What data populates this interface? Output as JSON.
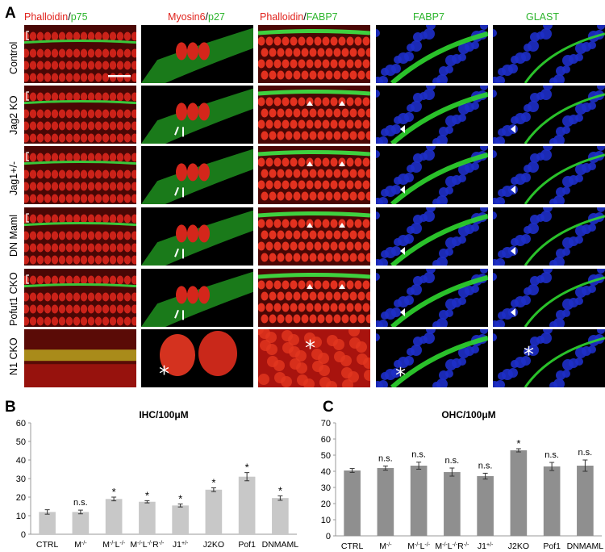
{
  "figure": {
    "panel_a_letter": "A",
    "panel_b_letter": "B",
    "panel_c_letter": "C",
    "column_headers": [
      {
        "parts": [
          {
            "text": "Phalloidin",
            "color": "red"
          },
          {
            "text": "/",
            "color": "black"
          },
          {
            "text": "p75",
            "color": "green"
          }
        ]
      },
      {
        "parts": [
          {
            "text": "Myosin6",
            "color": "red"
          },
          {
            "text": "/",
            "color": "black"
          },
          {
            "text": "p27",
            "color": "green"
          }
        ]
      },
      {
        "parts": [
          {
            "text": "Phalloidin",
            "color": "red"
          },
          {
            "text": "/",
            "color": "black"
          },
          {
            "text": "FABP7",
            "color": "green"
          }
        ]
      },
      {
        "parts": [
          {
            "text": "FABP7",
            "color": "green"
          }
        ]
      },
      {
        "parts": [
          {
            "text": "GLAST",
            "color": "green"
          }
        ]
      }
    ],
    "row_labels": [
      "Control",
      "Jag2 KO",
      "Jag1+/-",
      "DN Maml",
      "Pofut1 CKO",
      "N1 CKO"
    ],
    "colors": {
      "red": "#e0221c",
      "green": "#2eb52e",
      "bar": "#bfbfbf",
      "bar_c": "#8c8c8c"
    }
  },
  "chart_data": [
    {
      "type": "bar",
      "title": "IHC/100μM",
      "categories": [
        "CTRL",
        "M-/-",
        "M-/-L-/-",
        "M-/-L-/-R-/-",
        "J1+/-",
        "J2KO",
        "Pof1",
        "DNMAML"
      ],
      "values": [
        12,
        12,
        19,
        17.5,
        15.5,
        24,
        31,
        19.5
      ],
      "errors": [
        1.2,
        1,
        1,
        0.6,
        0.8,
        1,
        2.2,
        1.2
      ],
      "annotations": [
        "",
        "n.s.",
        "*",
        "*",
        "*",
        "*",
        "*",
        "*"
      ],
      "ylim": [
        0,
        60
      ],
      "yticks": [
        0,
        10,
        20,
        30,
        40,
        50,
        60
      ],
      "bar_color": "#c8c8c8"
    },
    {
      "type": "bar",
      "title": "OHC/100μM",
      "categories": [
        "CTRL",
        "M-/-",
        "M-/-L-/-",
        "M-/-L-/-R-/-",
        "J1+/-",
        "J2KO",
        "Pof1",
        "DNMAML"
      ],
      "values": [
        40.5,
        42,
        43.5,
        39.5,
        37,
        53,
        43,
        43.5
      ],
      "errors": [
        1.2,
        1.3,
        2.2,
        2.5,
        1.8,
        1,
        2.5,
        3.5
      ],
      "annotations": [
        "",
        "n.s.",
        "n.s.",
        "n.s.",
        "n.s.",
        "*",
        "n.s.",
        "n.s."
      ],
      "ylim": [
        0,
        70
      ],
      "yticks": [
        0,
        10,
        20,
        30,
        40,
        50,
        60,
        70
      ],
      "bar_color": "#8f8f8f"
    }
  ]
}
